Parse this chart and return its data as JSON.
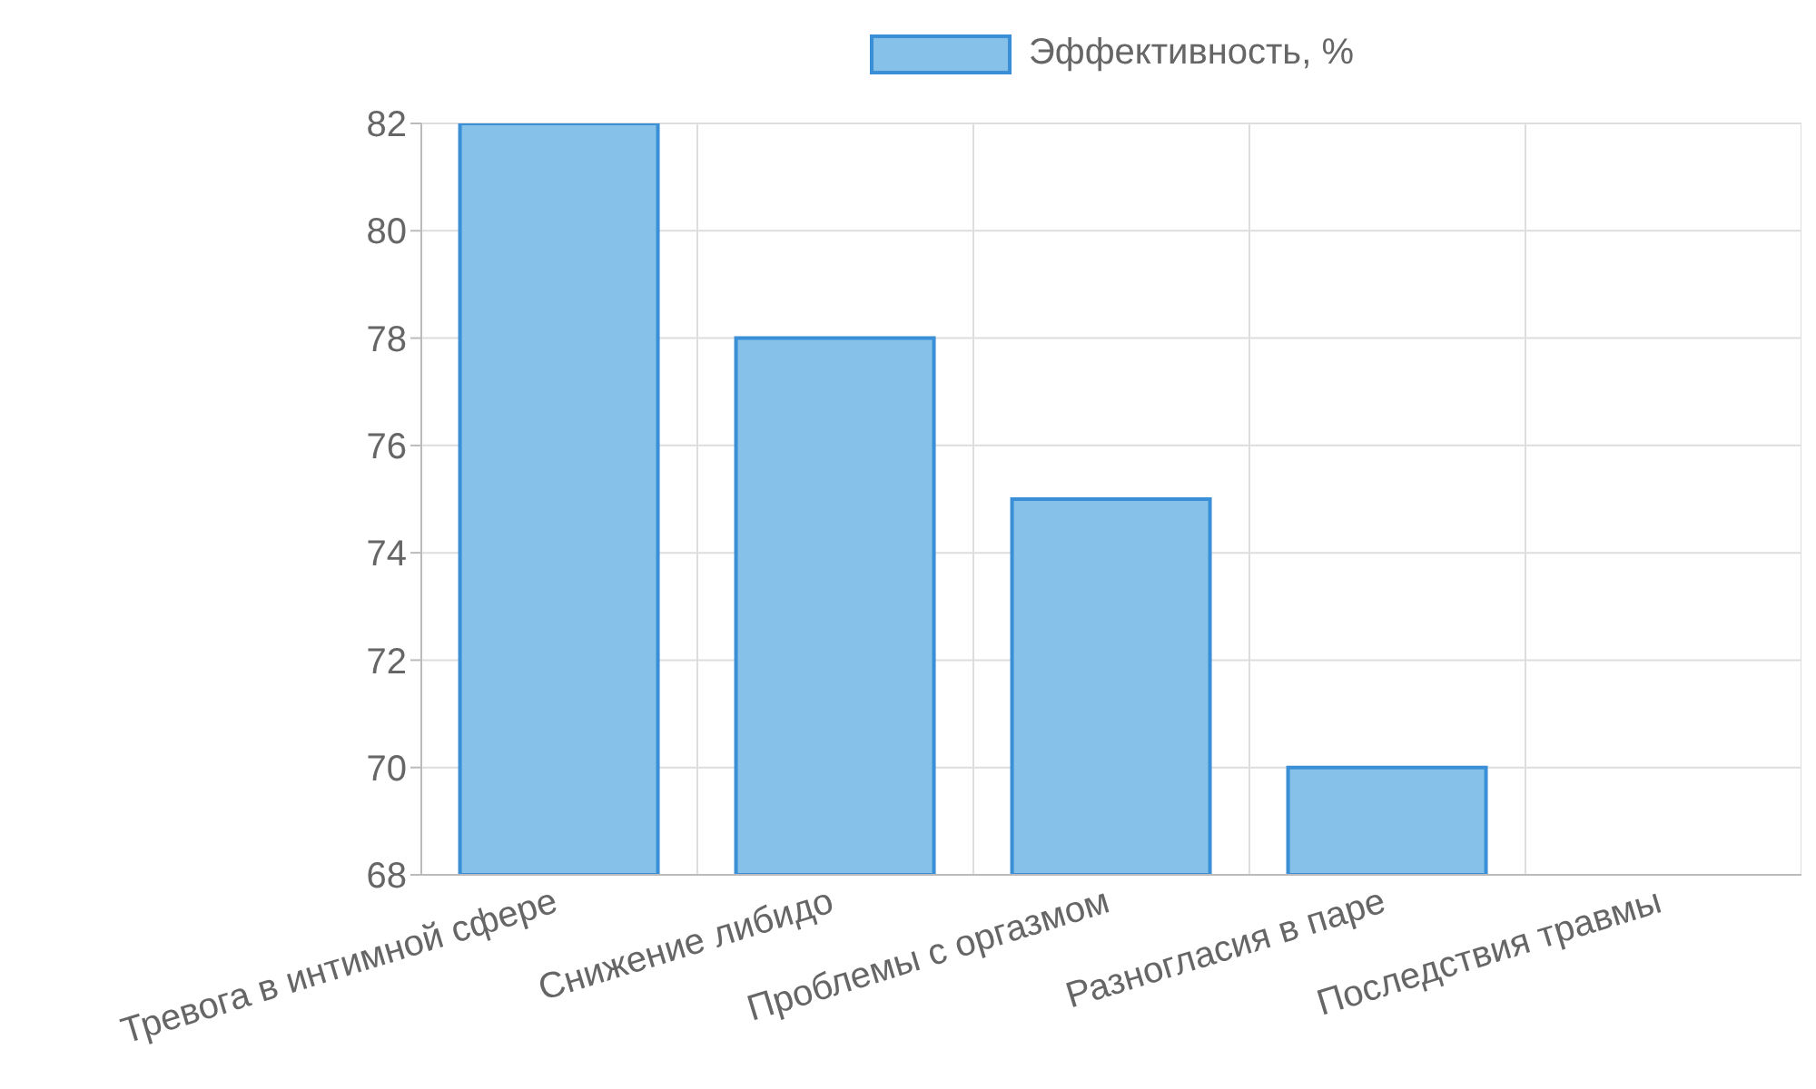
{
  "chart_data": {
    "type": "bar",
    "categories": [
      "Тревога в интимной сфере",
      "Снижение либидо",
      "Проблемы с оргазмом",
      "Разногласия в паре",
      "Последствия травмы"
    ],
    "series": [
      {
        "name": "Эффективность, %",
        "color": "#85c1e9",
        "values": [
          82,
          78,
          75,
          70,
          68
        ]
      }
    ],
    "ylim": [
      68,
      82
    ],
    "yticks": [
      68,
      70,
      72,
      74,
      76,
      78,
      80,
      82
    ],
    "grid": true,
    "legend": "top"
  }
}
